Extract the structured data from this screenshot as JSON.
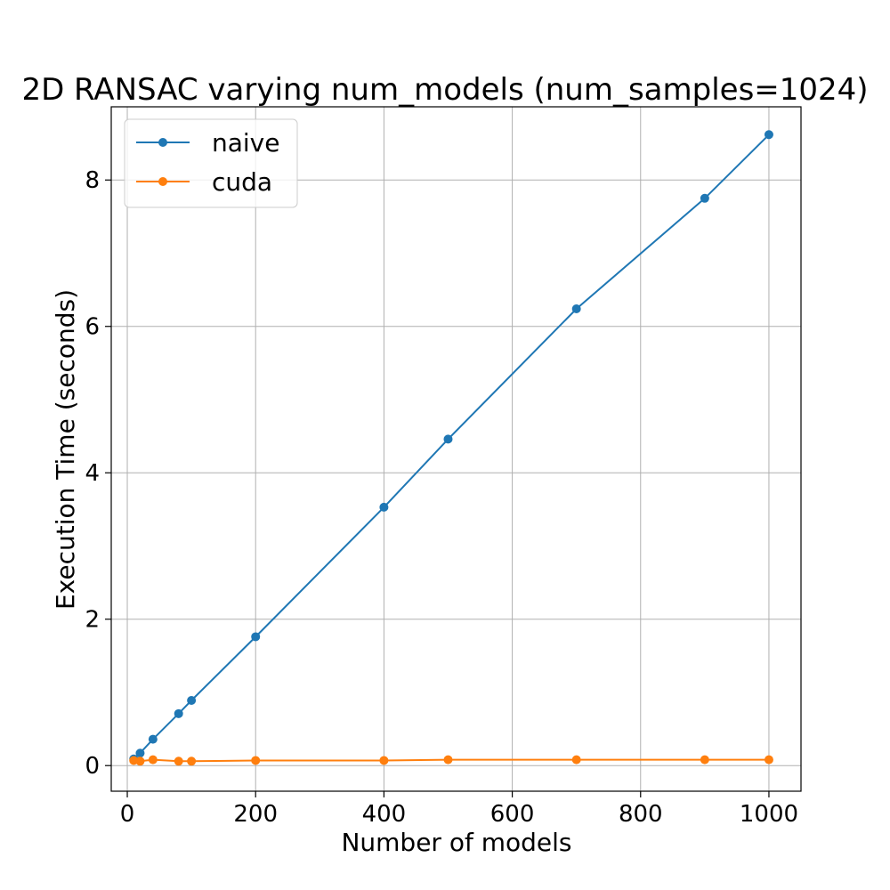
{
  "chart_data": {
    "type": "line",
    "title": "2D RANSAC varying num_models (num_samples=1024)",
    "xlabel": "Number of models",
    "ylabel": "Execution Time (seconds)",
    "xlim": [
      -25,
      1050
    ],
    "ylim": [
      -0.35,
      9.0
    ],
    "xticks": [
      0,
      200,
      400,
      600,
      800,
      1000
    ],
    "xtick_labels": [
      "0",
      "200",
      "400",
      "600",
      "800",
      "1000"
    ],
    "yticks": [
      0,
      2,
      4,
      6,
      8
    ],
    "ytick_labels": [
      "0",
      "2",
      "4",
      "6",
      "8"
    ],
    "grid": true,
    "legend_position": "top-left",
    "series": [
      {
        "name": "naive",
        "color": "#1f77b4",
        "x": [
          10,
          20,
          40,
          80,
          100,
          200,
          400,
          500,
          700,
          900,
          1000
        ],
        "y": [
          0.09,
          0.17,
          0.36,
          0.71,
          0.89,
          1.76,
          3.53,
          4.46,
          6.24,
          7.75,
          8.62
        ]
      },
      {
        "name": "cuda",
        "color": "#ff7f0e",
        "x": [
          10,
          20,
          40,
          80,
          100,
          200,
          400,
          500,
          700,
          900,
          1000
        ],
        "y": [
          0.07,
          0.06,
          0.08,
          0.06,
          0.06,
          0.07,
          0.07,
          0.08,
          0.08,
          0.08,
          0.08
        ]
      }
    ]
  }
}
